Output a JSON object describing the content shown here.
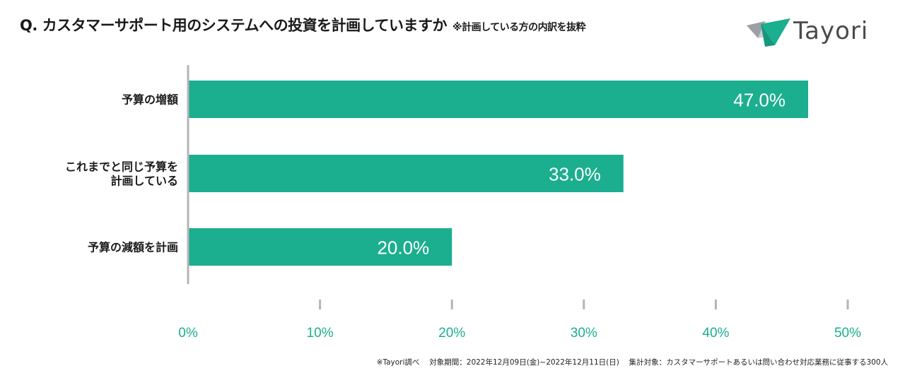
{
  "header": {
    "question": "Q. カスタマーサポート用のシステムへの投資を計画していますか",
    "note": "※計画している方の内訳を抜粋"
  },
  "brand": {
    "name": "Tayori",
    "accent": "#1bae8f"
  },
  "chart_data": {
    "type": "bar",
    "orientation": "horizontal",
    "categories": [
      [
        "予算の増額"
      ],
      [
        "これまでと同じ予算を",
        "計画している"
      ],
      [
        "予算の減額を計画"
      ]
    ],
    "values": [
      47.0,
      33.0,
      20.0
    ],
    "data_labels": [
      "47.0%",
      "33.0%",
      "20.0%"
    ],
    "xlim": [
      0,
      50
    ],
    "xticks": [
      0,
      10,
      20,
      30,
      40,
      50
    ],
    "xtick_labels": [
      "0%",
      "10%",
      "20%",
      "30%",
      "40%",
      "50%"
    ],
    "title": "",
    "xlabel": "",
    "ylabel": "",
    "bar_color": "#1bae8f",
    "grid": false
  },
  "footnote": "※Tayori調べ　 対象期間：2022年12月09日(金)~2022年12月11日(日)　 集計対象：カスタマーサポートあるいは問い合わせ対応業務に従事する300人"
}
